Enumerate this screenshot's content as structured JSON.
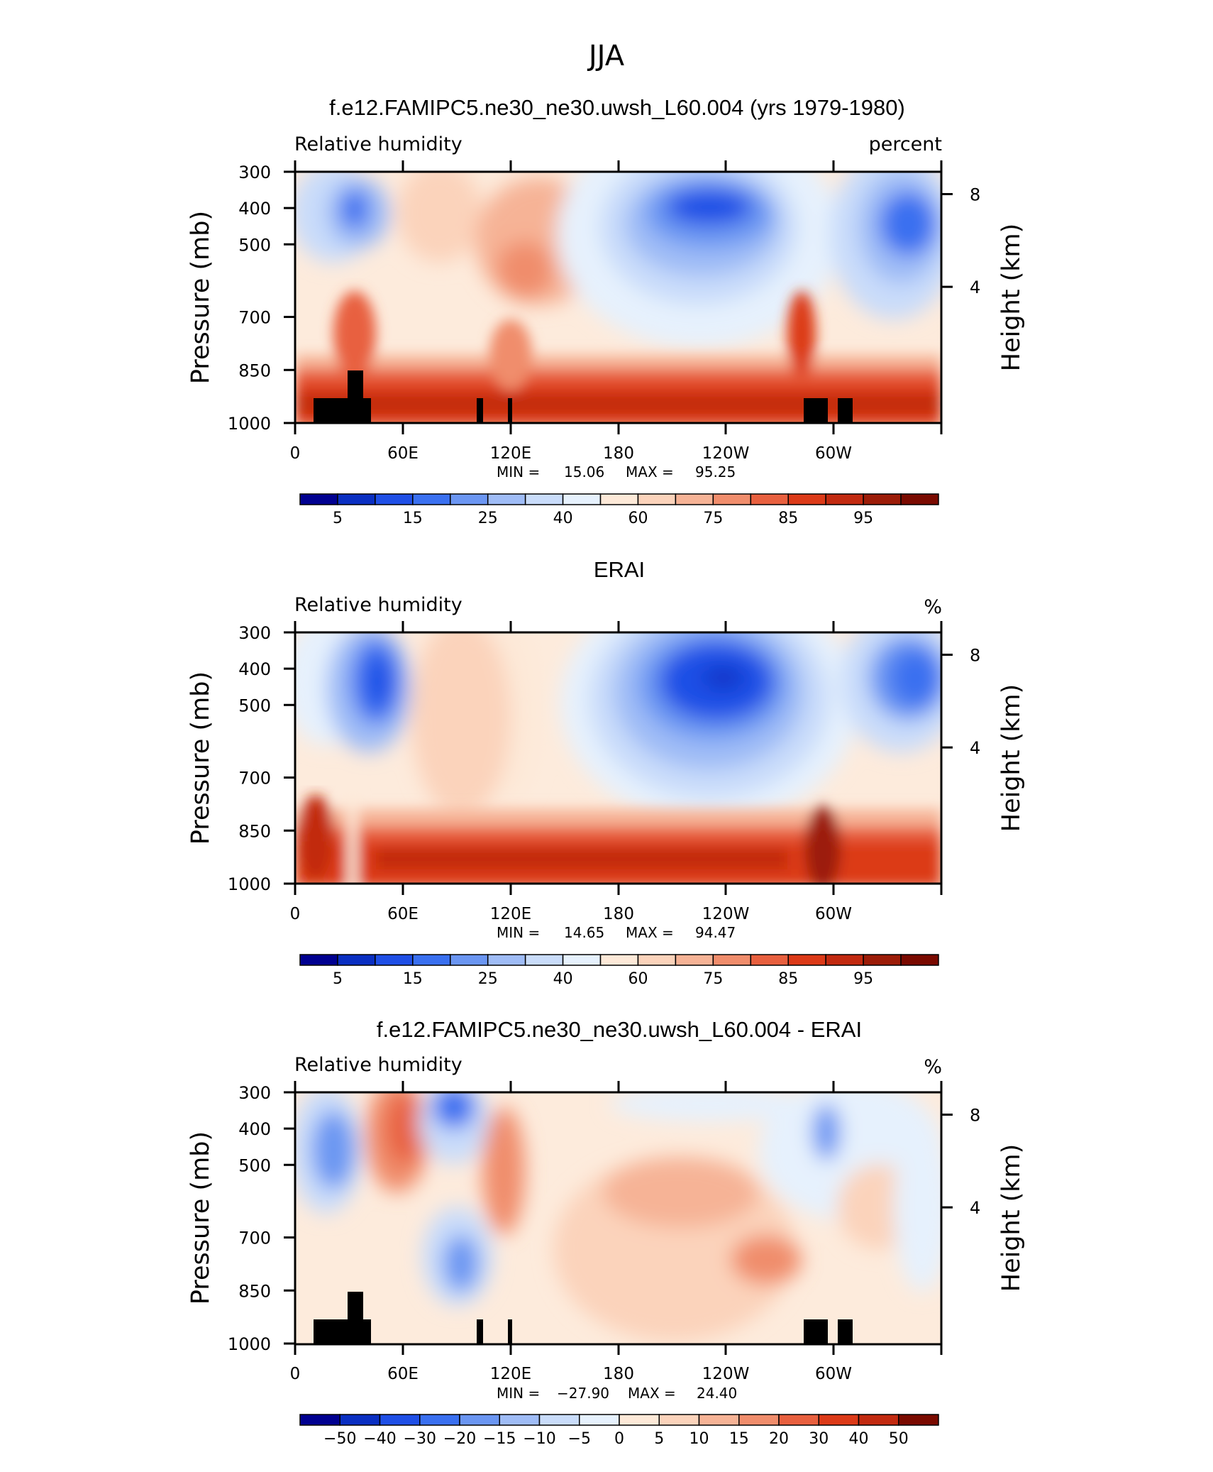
{
  "figure": {
    "title": "JJA"
  },
  "chart_data": [
    {
      "type": "heatmap",
      "title": "f.e12.FAMIPC5.ne30_ne30.uwsh_L60.004 (yrs 1979-1980)",
      "left_label": "Relative humidity",
      "right_label": "percent",
      "ylabel": "Pressure (mb)",
      "ylabel_right": "Height (km)",
      "x_ticks": [
        "0",
        "60E",
        "120E",
        "180",
        "120W",
        "60W"
      ],
      "y_ticks": [
        "300",
        "400",
        "500",
        "700",
        "850",
        "1000"
      ],
      "y_right_ticks": [
        "8",
        "4"
      ],
      "min_label": "MIN =",
      "min_value": "15.06",
      "max_label": "MAX =",
      "max_value": "95.25",
      "colorbar": {
        "labels": [
          "5",
          "15",
          "25",
          "40",
          "60",
          "75",
          "85",
          "95"
        ],
        "colors": [
          "#000090",
          "#0a2fc2",
          "#1f4fe6",
          "#3a70f0",
          "#6b96f2",
          "#9fbcf6",
          "#c9dcfa",
          "#e6f1fd",
          "#fde9d8",
          "#fbd3bb",
          "#f6b396",
          "#f08d6c",
          "#e8603f",
          "#dc3a18",
          "#c22a10",
          "#9c1c08",
          "#7a0a00"
        ]
      },
      "mountains": true
    },
    {
      "type": "heatmap",
      "title": "ERAI",
      "left_label": "Relative humidity",
      "right_label": "%",
      "ylabel": "Pressure (mb)",
      "ylabel_right": "Height (km)",
      "x_ticks": [
        "0",
        "60E",
        "120E",
        "180",
        "120W",
        "60W"
      ],
      "y_ticks": [
        "300",
        "400",
        "500",
        "700",
        "850",
        "1000"
      ],
      "y_right_ticks": [
        "8",
        "4"
      ],
      "min_label": "MIN =",
      "min_value": "14.65",
      "max_label": "MAX =",
      "max_value": "94.47",
      "colorbar": {
        "labels": [
          "5",
          "15",
          "25",
          "40",
          "60",
          "75",
          "85",
          "95"
        ],
        "colors": [
          "#000090",
          "#0a2fc2",
          "#1f4fe6",
          "#3a70f0",
          "#6b96f2",
          "#9fbcf6",
          "#c9dcfa",
          "#e6f1fd",
          "#fde9d8",
          "#fbd3bb",
          "#f6b396",
          "#f08d6c",
          "#e8603f",
          "#dc3a18",
          "#c22a10",
          "#9c1c08",
          "#7a0a00"
        ]
      },
      "mountains": false
    },
    {
      "type": "heatmap",
      "title": "f.e12.FAMIPC5.ne30_ne30.uwsh_L60.004 - ERAI",
      "left_label": "Relative humidity",
      "right_label": "%",
      "ylabel": "Pressure (mb)",
      "ylabel_right": "Height (km)",
      "x_ticks": [
        "0",
        "60E",
        "120E",
        "180",
        "120W",
        "60W"
      ],
      "y_ticks": [
        "300",
        "400",
        "500",
        "700",
        "850",
        "1000"
      ],
      "y_right_ticks": [
        "8",
        "4"
      ],
      "min_label": "MIN =",
      "min_value": "−27.90",
      "max_label": "MAX =",
      "max_value": "24.40",
      "colorbar": {
        "labels": [
          "−50",
          "−40",
          "−30",
          "−20",
          "−15",
          "−10",
          "−5",
          "0",
          "5",
          "10",
          "15",
          "20",
          "30",
          "40",
          "50"
        ],
        "colors": [
          "#000090",
          "#0a2fc2",
          "#1f4fe6",
          "#3a70f0",
          "#6b96f2",
          "#9fbcf6",
          "#c9dcfa",
          "#e6f1fd",
          "#fde9d8",
          "#fbd3bb",
          "#f6b396",
          "#f08d6c",
          "#e8603f",
          "#dc3a18",
          "#c22a10",
          "#7a0a00"
        ]
      },
      "mountains": true
    }
  ]
}
